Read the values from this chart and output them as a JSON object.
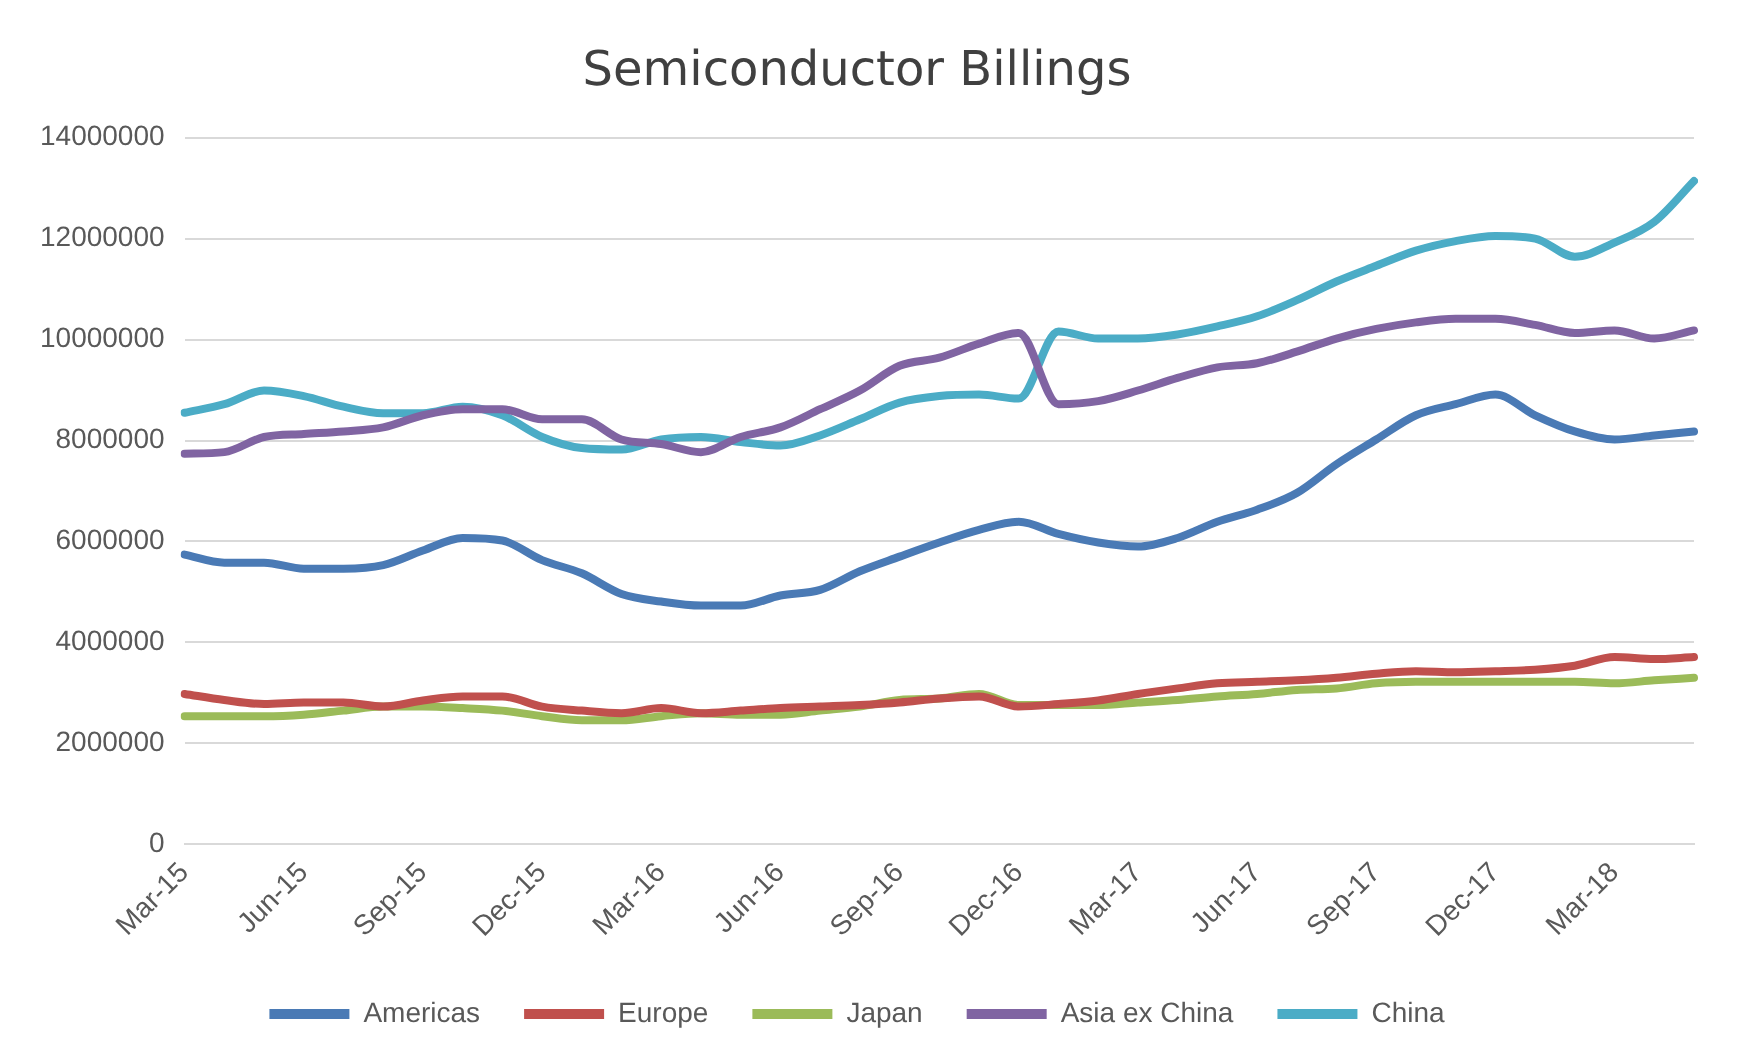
{
  "chart_data": {
    "type": "line",
    "title": "Semiconductor Billings",
    "categories": [
      "Mar-15",
      null,
      null,
      "Jun-15",
      null,
      null,
      "Sep-15",
      null,
      null,
      "Dec-15",
      null,
      null,
      "Mar-16",
      null,
      null,
      "Jun-16",
      null,
      null,
      "Sep-16",
      null,
      null,
      "Dec-16",
      null,
      null,
      "Mar-17",
      null,
      null,
      "Jun-17",
      null,
      null,
      "Sep-17",
      null,
      null,
      "Dec-17",
      null,
      null,
      "Mar-18",
      null,
      null
    ],
    "series": [
      {
        "name": "Americas",
        "color": "#4a7ab5",
        "values": [
          5740000,
          5580000,
          5580000,
          5460000,
          5460000,
          5530000,
          5820000,
          6070000,
          6020000,
          5630000,
          5370000,
          4960000,
          4810000,
          4730000,
          4730000,
          4930000,
          5040000,
          5410000,
          5700000,
          5980000,
          6230000,
          6390000,
          6150000,
          5980000,
          5900000,
          6070000,
          6390000,
          6630000,
          6960000,
          7530000,
          8020000,
          8500000,
          8720000,
          8910000,
          8500000,
          8180000,
          8020000,
          8100000,
          8180000
        ]
      },
      {
        "name": "Europe",
        "color": "#c0504d",
        "values": [
          2980000,
          2860000,
          2780000,
          2810000,
          2810000,
          2730000,
          2850000,
          2930000,
          2930000,
          2730000,
          2650000,
          2600000,
          2700000,
          2600000,
          2650000,
          2700000,
          2730000,
          2760000,
          2810000,
          2890000,
          2930000,
          2730000,
          2780000,
          2850000,
          2980000,
          3090000,
          3190000,
          3220000,
          3250000,
          3300000,
          3380000,
          3430000,
          3410000,
          3430000,
          3460000,
          3540000,
          3710000,
          3670000,
          3710000
        ]
      },
      {
        "name": "Japan",
        "color": "#9bbb59",
        "values": [
          2540000,
          2540000,
          2540000,
          2570000,
          2650000,
          2730000,
          2730000,
          2700000,
          2650000,
          2540000,
          2460000,
          2460000,
          2540000,
          2600000,
          2570000,
          2570000,
          2650000,
          2730000,
          2860000,
          2890000,
          2980000,
          2760000,
          2760000,
          2760000,
          2810000,
          2860000,
          2930000,
          2980000,
          3060000,
          3090000,
          3190000,
          3220000,
          3220000,
          3220000,
          3220000,
          3220000,
          3190000,
          3250000,
          3300000
        ]
      },
      {
        "name": "Asia ex China",
        "color": "#8064a2",
        "values": [
          7740000,
          7770000,
          8070000,
          8130000,
          8180000,
          8260000,
          8500000,
          8620000,
          8620000,
          8420000,
          8420000,
          8020000,
          7930000,
          7770000,
          8070000,
          8260000,
          8620000,
          8990000,
          9480000,
          9640000,
          9920000,
          10130000,
          8720000,
          8780000,
          8990000,
          9240000,
          9450000,
          9530000,
          9760000,
          10020000,
          10210000,
          10340000,
          10410000,
          10410000,
          10290000,
          10130000,
          10180000,
          10020000,
          10180000
        ]
      },
      {
        "name": "China",
        "color": "#4bacc6",
        "values": [
          8550000,
          8720000,
          8990000,
          8880000,
          8670000,
          8540000,
          8540000,
          8670000,
          8500000,
          8070000,
          7850000,
          7820000,
          8020000,
          8070000,
          7970000,
          7900000,
          8100000,
          8420000,
          8750000,
          8880000,
          8910000,
          8830000,
          10160000,
          10020000,
          10020000,
          10100000,
          10260000,
          10460000,
          10780000,
          11150000,
          11460000,
          11760000,
          11950000,
          12050000,
          12000000,
          11640000,
          11920000,
          12330000,
          13140000
        ]
      }
    ],
    "ylim": [
      0,
      14000000
    ],
    "yticks": [
      0,
      2000000,
      4000000,
      6000000,
      8000000,
      10000000,
      12000000,
      14000000
    ],
    "grid": "y",
    "legend": "bottom",
    "marker": "none",
    "line_style": "solid"
  }
}
